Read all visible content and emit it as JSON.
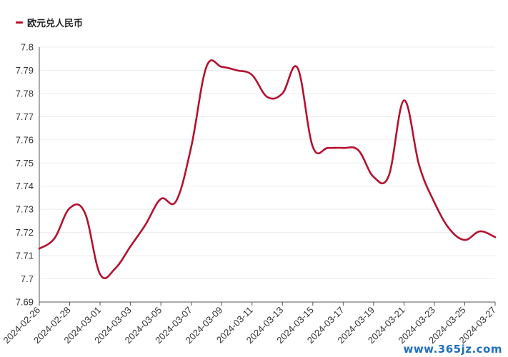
{
  "chart_data": {
    "type": "line",
    "legend": {
      "label": "欧元兑人民币",
      "position": "top-left"
    },
    "color": "#b5102e",
    "ylim": [
      7.69,
      7.8
    ],
    "yticks": [
      "7.8",
      "7.79",
      "7.78",
      "7.77",
      "7.76",
      "7.75",
      "7.74",
      "7.73",
      "7.72",
      "7.71",
      "7.7",
      "7.69"
    ],
    "xtick_labels": [
      "2024-02-26",
      "2024-02-28",
      "2024-03-01",
      "2024-03-03",
      "2024-03-05",
      "2024-03-07",
      "2024-03-09",
      "2024-03-11",
      "2024-03-13",
      "2024-03-15",
      "2024-03-17",
      "2024-03-19",
      "2024-03-21",
      "2024-03-23",
      "2024-03-25",
      "2024-03-27"
    ],
    "grid": true,
    "x": [
      "2024-02-26",
      "2024-02-27",
      "2024-02-28",
      "2024-02-29",
      "2024-03-01",
      "2024-03-02",
      "2024-03-03",
      "2024-03-04",
      "2024-03-05",
      "2024-03-06",
      "2024-03-07",
      "2024-03-08",
      "2024-03-09",
      "2024-03-10",
      "2024-03-11",
      "2024-03-12",
      "2024-03-13",
      "2024-03-14",
      "2024-03-15",
      "2024-03-16",
      "2024-03-17",
      "2024-03-18",
      "2024-03-19",
      "2024-03-20",
      "2024-03-21",
      "2024-03-22",
      "2024-03-23",
      "2024-03-24",
      "2024-03-25",
      "2024-03-26",
      "2024-03-27"
    ],
    "series": [
      {
        "name": "欧元兑人民币",
        "values": [
          7.713,
          7.7175,
          7.7305,
          7.7285,
          7.702,
          7.7045,
          7.714,
          7.7235,
          7.7345,
          7.7335,
          7.757,
          7.7915,
          7.7915,
          7.79,
          7.788,
          7.7785,
          7.78,
          7.791,
          7.757,
          7.7565,
          7.7565,
          7.7555,
          7.744,
          7.7445,
          7.777,
          7.749,
          7.733,
          7.7215,
          7.7168,
          7.7205,
          7.718
        ]
      }
    ]
  },
  "watermark": {
    "text": "www.365jz.com"
  }
}
